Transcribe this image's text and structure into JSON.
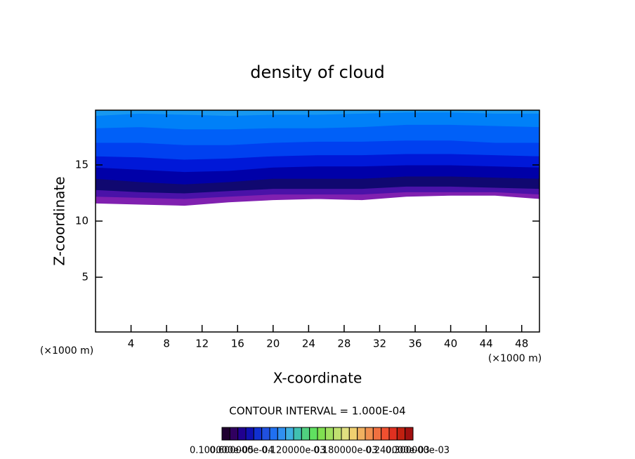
{
  "chart_data": {
    "type": "contour",
    "title": "density of cloud",
    "xlabel": "X-coordinate",
    "ylabel": "Z-coordinate",
    "xunit": "(×1000 m)",
    "annotation": "CONTOUR INTERVAL = 1.000E-04",
    "xlim": [
      0,
      50
    ],
    "ylim": [
      0.125,
      19.875
    ],
    "xticks": [
      4,
      8,
      12,
      16,
      20,
      24,
      28,
      32,
      36,
      40,
      44,
      48
    ],
    "yticks": [
      5,
      10,
      15
    ],
    "x": [
      0,
      5,
      10,
      15,
      20,
      25,
      30,
      35,
      40,
      45,
      50
    ],
    "contours": [
      {
        "color": "#8020b0",
        "heights": [
          11.6,
          11.5,
          11.4,
          11.7,
          11.9,
          12.0,
          11.9,
          12.2,
          12.3,
          12.3,
          12.0
        ]
      },
      {
        "color": "#4a12a8",
        "heights": [
          12.2,
          12.1,
          12.0,
          12.2,
          12.4,
          12.4,
          12.4,
          12.6,
          12.6,
          12.6,
          12.4
        ]
      },
      {
        "color": "#100870",
        "heights": [
          12.8,
          12.6,
          12.5,
          12.7,
          12.9,
          12.9,
          12.9,
          13.1,
          13.1,
          13.0,
          12.9
        ]
      },
      {
        "color": "#0000a8",
        "heights": [
          13.8,
          13.5,
          13.3,
          13.5,
          13.8,
          13.8,
          13.8,
          14.0,
          14.0,
          13.9,
          13.8
        ]
      },
      {
        "color": "#0018d8",
        "heights": [
          14.8,
          14.6,
          14.4,
          14.5,
          14.8,
          14.9,
          14.9,
          15.0,
          15.0,
          14.9,
          14.8
        ]
      },
      {
        "color": "#0040f0",
        "heights": [
          15.8,
          15.7,
          15.5,
          15.6,
          15.8,
          15.9,
          15.9,
          16.0,
          16.0,
          15.9,
          15.8
        ]
      },
      {
        "color": "#0060f8",
        "heights": [
          17.0,
          17.0,
          16.8,
          16.8,
          17.0,
          17.1,
          17.1,
          17.2,
          17.2,
          17.0,
          17.0
        ]
      },
      {
        "color": "#0080f8",
        "heights": [
          18.3,
          18.4,
          18.2,
          18.2,
          18.3,
          18.3,
          18.4,
          18.6,
          18.6,
          18.5,
          18.4
        ]
      },
      {
        "color": "#1898f0",
        "heights": [
          19.4,
          19.6,
          19.5,
          19.4,
          19.5,
          19.5,
          19.6,
          19.7,
          19.7,
          19.6,
          19.6
        ]
      }
    ],
    "colorbar": {
      "colors": [
        "#200030",
        "#300060",
        "#200090",
        "#1010b0",
        "#1030d0",
        "#2050e0",
        "#2070f0",
        "#3090f0",
        "#40b0e0",
        "#40c0b0",
        "#50d080",
        "#60e060",
        "#80e050",
        "#a0e060",
        "#c0e070",
        "#e0e080",
        "#f0d070",
        "#f0b060",
        "#f09050",
        "#f07040",
        "#f05030",
        "#e03020",
        "#c02010",
        "#a01010"
      ],
      "labels": [
        "0.100000e-05",
        "0.600000e-04",
        "0.120000e-03",
        "0.180000e-03",
        "0.240000e-03",
        "0.300000e-03"
      ]
    }
  }
}
